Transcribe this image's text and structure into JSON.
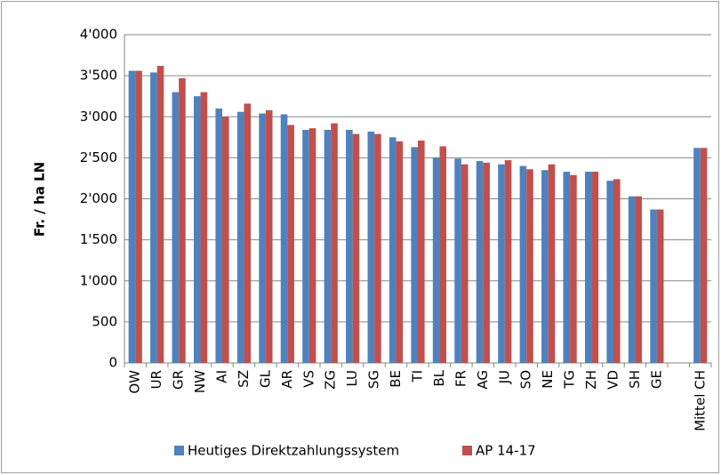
{
  "chart_data": {
    "type": "bar",
    "categories": [
      "OW",
      "UR",
      "GR",
      "NW",
      "AI",
      "SZ",
      "GL",
      "AR",
      "VS",
      "ZG",
      "LU",
      "SG",
      "BE",
      "TI",
      "BL",
      "FR",
      "AG",
      "JU",
      "SO",
      "NE",
      "TG",
      "ZH",
      "VD",
      "SH",
      "GE",
      null,
      "Mittel CH"
    ],
    "series": [
      {
        "name": "Heutiges Direktzahlungssystem",
        "color": "#4f81bd",
        "values": [
          3560,
          3540,
          3300,
          3250,
          3100,
          3060,
          3040,
          3030,
          2840,
          2840,
          2840,
          2820,
          2750,
          2630,
          2500,
          2490,
          2460,
          2420,
          2400,
          2350,
          2330,
          2330,
          2220,
          2030,
          1870,
          null,
          2620
        ]
      },
      {
        "name": "AP 14-17",
        "color": "#c0504d",
        "values": [
          3560,
          3620,
          3470,
          3300,
          3000,
          3160,
          3080,
          2900,
          2860,
          2920,
          2790,
          2790,
          2700,
          2710,
          2640,
          2420,
          2440,
          2470,
          2360,
          2420,
          2290,
          2330,
          2240,
          2030,
          1870,
          null,
          2620
        ]
      }
    ],
    "y_label": "Fr. / ha LN",
    "ylim": [
      0,
      4000
    ],
    "yticks": [
      0,
      500,
      {
        "value": 1000,
        "label": "1'000"
      },
      {
        "value": 1500,
        "label": "1'500"
      },
      {
        "value": 2000,
        "label": "2'000"
      },
      {
        "value": 2500,
        "label": "2'500"
      },
      {
        "value": 3000,
        "label": "3'000"
      },
      {
        "value": 3500,
        "label": "3'500"
      },
      {
        "value": 4000,
        "label": "4'000"
      }
    ],
    "grid": true,
    "legend": "bottom"
  }
}
